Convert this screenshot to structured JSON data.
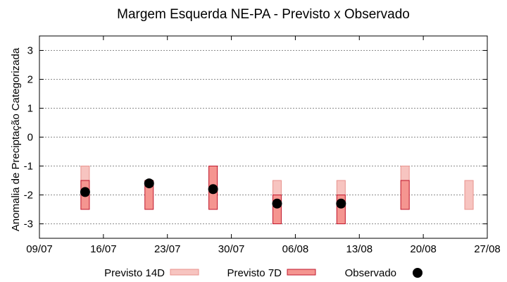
{
  "chart_data": {
    "type": "scatter",
    "title": "Margem Esquerda NE-PA - Previsto x Observado",
    "xlabel": "",
    "ylabel": "Anomalia de Preciptação Categorizada",
    "ylim": [
      -3.5,
      3.5
    ],
    "yticks": [
      3,
      2,
      1,
      0,
      -1,
      -2,
      -3
    ],
    "ytick_labels": [
      "3",
      "2",
      "1",
      "0",
      "-1",
      "-2",
      "-3"
    ],
    "xlim": [
      "2021-07-09",
      "2021-08-27"
    ],
    "xticks": [
      "2021-07-09",
      "2021-07-16",
      "2021-07-23",
      "2021-07-30",
      "2021-08-06",
      "2021-08-13",
      "2021-08-20",
      "2021-08-27"
    ],
    "xtick_labels": [
      "09/07",
      "16/07",
      "23/07",
      "30/07",
      "06/08",
      "13/08",
      "20/08",
      "27/08"
    ],
    "grid": true,
    "legend_position": "bottom",
    "colors": {
      "previsto_14d_fill": "#f7c4c0",
      "previsto_14d_stroke": "#e8928d",
      "previsto_7d_fill": "#f59590",
      "previsto_7d_stroke": "#c0182e",
      "observado": "#000000"
    },
    "series": [
      {
        "name": "Previsto 14D",
        "kind": "range",
        "points": [
          {
            "x": "2021-07-14",
            "low": -2.5,
            "high": -1
          },
          {
            "x": "2021-07-28",
            "low": -2.5,
            "high": -1
          },
          {
            "x": "2021-08-04",
            "low": -3,
            "high": -1.5
          },
          {
            "x": "2021-08-11",
            "low": -3,
            "high": -1.5
          },
          {
            "x": "2021-08-18",
            "low": -2.5,
            "high": -1
          },
          {
            "x": "2021-08-25",
            "low": -2.5,
            "high": -1.5
          }
        ]
      },
      {
        "name": "Previsto 7D",
        "kind": "range",
        "points": [
          {
            "x": "2021-07-14",
            "low": -2.5,
            "high": -1.5
          },
          {
            "x": "2021-07-21",
            "low": -2.5,
            "high": -1.5
          },
          {
            "x": "2021-07-28",
            "low": -2.5,
            "high": -1
          },
          {
            "x": "2021-08-04",
            "low": -3,
            "high": -2
          },
          {
            "x": "2021-08-11",
            "low": -3,
            "high": -2
          },
          {
            "x": "2021-08-18",
            "low": -2.5,
            "high": -1.5
          }
        ]
      },
      {
        "name": "Observado",
        "kind": "point",
        "points": [
          {
            "x": "2021-07-14",
            "y": -1.9
          },
          {
            "x": "2021-07-21",
            "y": -1.6
          },
          {
            "x": "2021-07-28",
            "y": -1.8
          },
          {
            "x": "2021-08-04",
            "y": -2.3
          },
          {
            "x": "2021-08-11",
            "y": -2.3
          }
        ]
      }
    ]
  }
}
